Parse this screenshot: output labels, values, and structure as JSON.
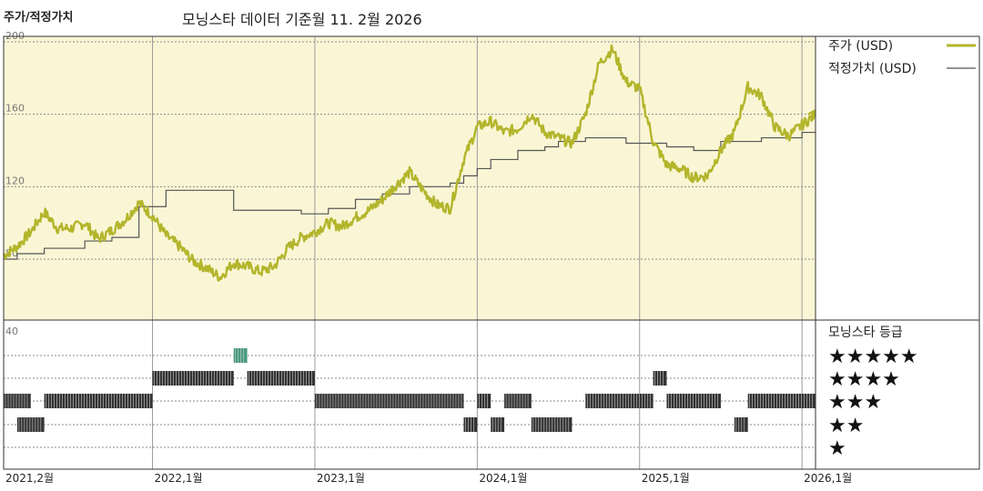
{
  "corner_title": "주가/적정가치",
  "header": {
    "prefix": "모닝스타 데이터 기준월",
    "date": "11. 2월 2026"
  },
  "legend": {
    "price_label": "주가 (USD)",
    "fair_label": "적정가치 (USD)",
    "rating_title": "모닝스타 등급"
  },
  "colors": {
    "panel_bg": "#faf6d5",
    "price": "#b3b52b",
    "fair": "#555555",
    "rating_bar": "#333333",
    "rating_top": "#4a9a80"
  },
  "chart_data": [
    {
      "type": "line",
      "y_ticks": [
        80,
        120,
        160,
        200
      ],
      "ylim": [
        80,
        200
      ],
      "x_tick_labels": [
        "2021,2월",
        "2022,1월",
        "2023,1월",
        "2024,1월",
        "2025,1월",
        "2026,1월"
      ],
      "xlim": [
        "2021-02",
        "2026-02"
      ],
      "series": [
        {
          "name": "주가 (USD)",
          "points": [
            [
              "2021-02",
              82
            ],
            [
              "2021-03",
              87
            ],
            [
              "2021-04",
              95
            ],
            [
              "2021-05",
              106
            ],
            [
              "2021-06",
              97
            ],
            [
              "2021-07",
              97
            ],
            [
              "2021-08",
              100
            ],
            [
              "2021-09",
              91
            ],
            [
              "2021-10",
              96
            ],
            [
              "2021-11",
              102
            ],
            [
              "2021-12",
              111
            ],
            [
              "2022-01",
              104
            ],
            [
              "2022-02",
              93
            ],
            [
              "2022-03",
              87
            ],
            [
              "2022-04",
              79
            ],
            [
              "2022-05",
              75
            ],
            [
              "2022-06",
              70
            ],
            [
              "2022-07",
              78
            ],
            [
              "2022-08",
              76
            ],
            [
              "2022-09",
              73
            ],
            [
              "2022-10",
              76
            ],
            [
              "2022-11",
              86
            ],
            [
              "2022-12",
              92
            ],
            [
              "2023-01",
              95
            ],
            [
              "2023-02",
              100
            ],
            [
              "2023-03",
              98
            ],
            [
              "2023-04",
              103
            ],
            [
              "2023-05",
              107
            ],
            [
              "2023-06",
              113
            ],
            [
              "2023-07",
              121
            ],
            [
              "2023-08",
              128
            ],
            [
              "2023-09",
              118
            ],
            [
              "2023-10",
              110
            ],
            [
              "2023-11",
              108
            ],
            [
              "2023-12",
              135
            ],
            [
              "2024-01",
              153
            ],
            [
              "2024-02",
              156
            ],
            [
              "2024-03",
              150
            ],
            [
              "2024-04",
              152
            ],
            [
              "2024-05",
              160
            ],
            [
              "2024-06",
              150
            ],
            [
              "2024-07",
              147
            ],
            [
              "2024-08",
              144
            ],
            [
              "2024-09",
              160
            ],
            [
              "2024-10",
              188
            ],
            [
              "2024-11",
              196
            ],
            [
              "2024-12",
              178
            ],
            [
              "2025-01",
              174
            ],
            [
              "2025-02",
              145
            ],
            [
              "2025-03",
              132
            ],
            [
              "2025-04",
              130
            ],
            [
              "2025-05",
              125
            ],
            [
              "2025-06",
              126
            ],
            [
              "2025-07",
              140
            ],
            [
              "2025-08",
              150
            ],
            [
              "2025-09",
              175
            ],
            [
              "2025-10",
              170
            ],
            [
              "2025-11",
              153
            ],
            [
              "2025-12",
              148
            ],
            [
              "2026-01",
              154
            ],
            [
              "2026-02",
              160
            ]
          ]
        },
        {
          "name": "적정가치 (USD)",
          "steps": [
            [
              "2021-02",
              80
            ],
            [
              "2021-03",
              83
            ],
            [
              "2021-05",
              86
            ],
            [
              "2021-08",
              90
            ],
            [
              "2021-10",
              92
            ],
            [
              "2021-12",
              109
            ],
            [
              "2022-02",
              118
            ],
            [
              "2022-07",
              107
            ],
            [
              "2022-12",
              105
            ],
            [
              "2023-02",
              108
            ],
            [
              "2023-04",
              113
            ],
            [
              "2023-06",
              116
            ],
            [
              "2023-08",
              120
            ],
            [
              "2023-11",
              122
            ],
            [
              "2023-12",
              126
            ],
            [
              "2024-01",
              130
            ],
            [
              "2024-02",
              135
            ],
            [
              "2024-04",
              140
            ],
            [
              "2024-06",
              142
            ],
            [
              "2024-07",
              145
            ],
            [
              "2024-09",
              147
            ],
            [
              "2024-12",
              144
            ],
            [
              "2025-03",
              142
            ],
            [
              "2025-05",
              140
            ],
            [
              "2025-07",
              145
            ],
            [
              "2025-10",
              147
            ],
            [
              "2026-01",
              150
            ],
            [
              "2026-02",
              150
            ]
          ]
        }
      ]
    },
    {
      "type": "bar",
      "title": "모닝스타 등급",
      "y_tick": "40",
      "rating_levels": [
        "★★★★★",
        "★★★★",
        "★★★",
        "★★",
        "★"
      ],
      "segments": [
        {
          "stars": 3,
          "from": "2021-02",
          "to": "2021-04"
        },
        {
          "stars": 2,
          "from": "2021-03",
          "to": "2021-05"
        },
        {
          "stars": 3,
          "from": "2021-05",
          "to": "2022-01"
        },
        {
          "stars": 4,
          "from": "2022-01",
          "to": "2022-07"
        },
        {
          "stars": 5,
          "from": "2022-07",
          "to": "2022-08"
        },
        {
          "stars": 4,
          "from": "2022-08",
          "to": "2023-01"
        },
        {
          "stars": 3,
          "from": "2023-01",
          "to": "2023-12"
        },
        {
          "stars": 2,
          "from": "2023-12",
          "to": "2024-01"
        },
        {
          "stars": 3,
          "from": "2024-01",
          "to": "2024-02"
        },
        {
          "stars": 2,
          "from": "2024-02",
          "to": "2024-03"
        },
        {
          "stars": 3,
          "from": "2024-03",
          "to": "2024-05"
        },
        {
          "stars": 2,
          "from": "2024-05",
          "to": "2024-08"
        },
        {
          "stars": 3,
          "from": "2024-09",
          "to": "2025-02"
        },
        {
          "stars": 4,
          "from": "2025-02",
          "to": "2025-03"
        },
        {
          "stars": 3,
          "from": "2025-03",
          "to": "2025-07"
        },
        {
          "stars": 2,
          "from": "2025-08",
          "to": "2025-09"
        },
        {
          "stars": 3,
          "from": "2025-09",
          "to": "2026-02"
        }
      ]
    }
  ]
}
